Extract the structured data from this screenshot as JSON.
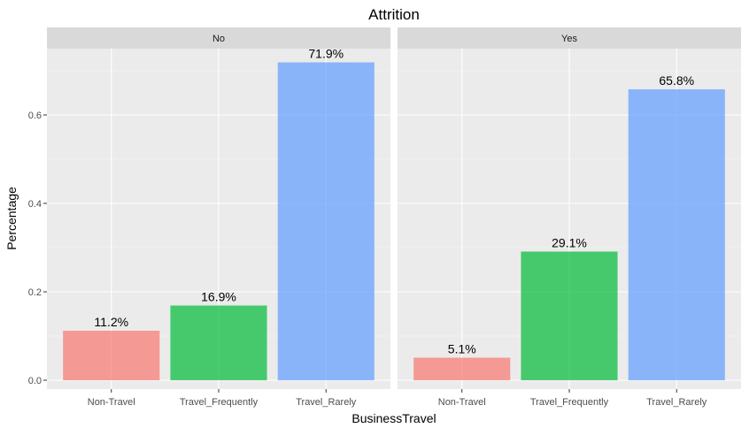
{
  "chart_data": {
    "type": "bar",
    "title": "Attrition",
    "xlabel": "BusinessTravel",
    "ylabel": "Percentage",
    "ylim": [
      -0.02,
      0.75
    ],
    "yticks": [
      0.0,
      0.2,
      0.4,
      0.6
    ],
    "ytick_labels": [
      "0.0",
      "0.2",
      "0.4",
      "0.6"
    ],
    "categories": [
      "Non-Travel",
      "Travel_Frequently",
      "Travel_Rarely"
    ],
    "colors": {
      "Non-Travel": "#F8766D",
      "Travel_Frequently": "#00BA38",
      "Travel_Rarely": "#619CFF"
    },
    "facet_variable": "Attrition",
    "facets": [
      {
        "label": "No",
        "values": [
          0.112,
          0.169,
          0.719
        ],
        "value_labels": [
          "11.2%",
          "16.9%",
          "71.9%"
        ]
      },
      {
        "label": "Yes",
        "values": [
          0.051,
          0.291,
          0.658
        ],
        "value_labels": [
          "5.1%",
          "29.1%",
          "65.8%"
        ]
      }
    ],
    "grid": true,
    "legend": "none"
  }
}
